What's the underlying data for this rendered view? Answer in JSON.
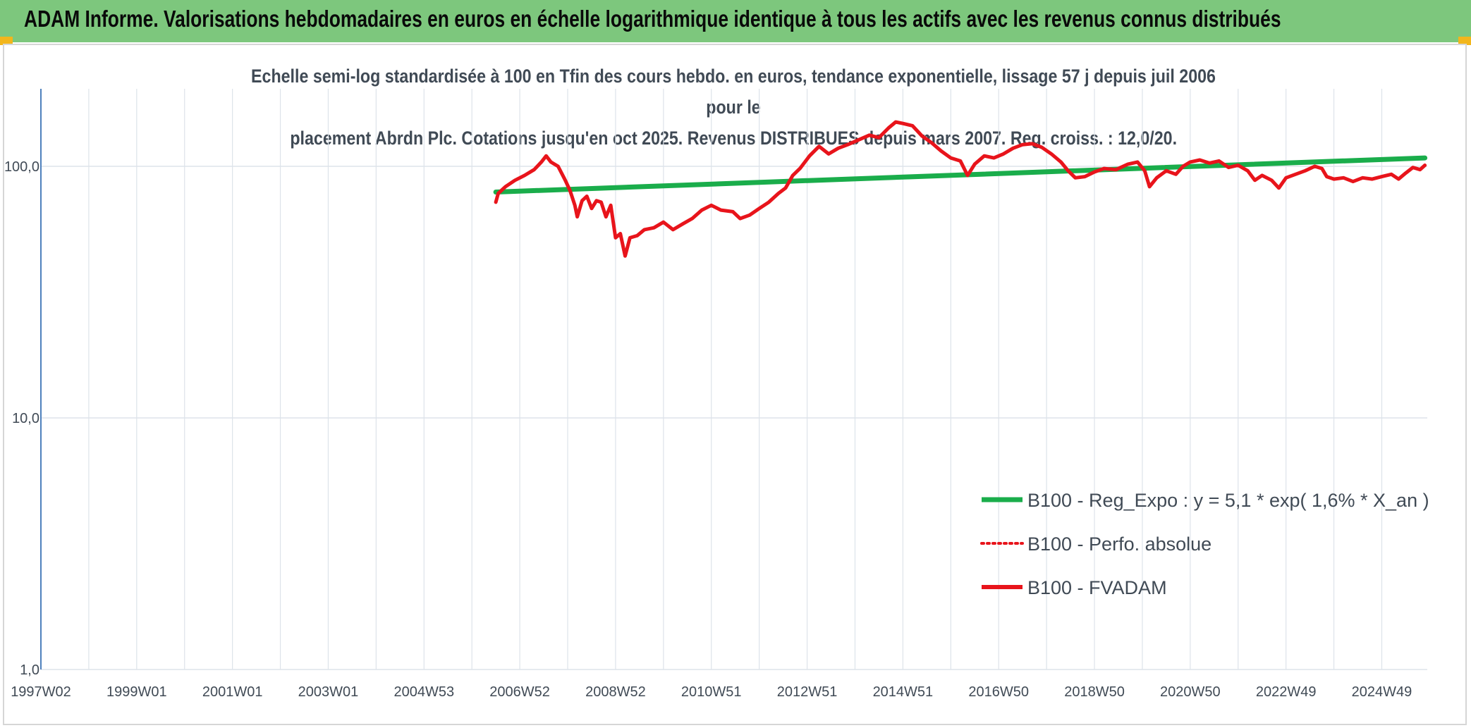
{
  "banner": {
    "title": "ADAM Informe. Valorisations hebdomadaires en euros en échelle logarithmique identique à tous les actifs avec les revenus connus distribués"
  },
  "colors": {
    "banner_bg": "#7dc77d",
    "accent_corner": "#f2b61c",
    "regression": "#1aad4b",
    "fvadam": "#e8141b",
    "perfo": "#e8141b",
    "grid": "#dde3ea",
    "y_axis_line": "#4f81bd",
    "text": "#404a55"
  },
  "chart_data": {
    "type": "line",
    "title_line1": "Echelle semi-log standardisée à 100 en Tfin des cours hebdo. en euros, tendance exponentielle, lissage 57 j depuis juil 2006 pour le",
    "title_line2": "placement Abrdn Plc. Cotations jusqu'en oct 2025. Revenus DISTRIBUES depuis mars 2007. Reg. croiss. : 12,0/20.",
    "y_scale": "log",
    "ylim": [
      1,
      180
    ],
    "y_ticks": [
      {
        "value": 100,
        "label": "100,0"
      },
      {
        "value": 10,
        "label": "10,0"
      },
      {
        "value": 1,
        "label": "1,0"
      }
    ],
    "x_unit": "years",
    "xlim": [
      1997.0,
      2025.95
    ],
    "x_ticks": [
      {
        "x": 1997.0,
        "label": "1997W02"
      },
      {
        "x": 1999.0,
        "label": "1999W01"
      },
      {
        "x": 2001.0,
        "label": "2001W01"
      },
      {
        "x": 2003.0,
        "label": "2003W01"
      },
      {
        "x": 2005.0,
        "label": "2004W53"
      },
      {
        "x": 2007.0,
        "label": "2006W52"
      },
      {
        "x": 2009.0,
        "label": "2008W52"
      },
      {
        "x": 2011.0,
        "label": "2010W51"
      },
      {
        "x": 2013.0,
        "label": "2012W51"
      },
      {
        "x": 2015.0,
        "label": "2014W51"
      },
      {
        "x": 2017.0,
        "label": "2016W50"
      },
      {
        "x": 2019.0,
        "label": "2018W50"
      },
      {
        "x": 2021.0,
        "label": "2020W50"
      },
      {
        "x": 2023.0,
        "label": "2022W49"
      },
      {
        "x": 2025.0,
        "label": "2024W49"
      }
    ],
    "grid": true,
    "legend_position": "bottom-right",
    "series": [
      {
        "name": "B100 - Reg_Expo : y = 5,1 * exp( 1,6% *  X_an )",
        "style": "solid-thick",
        "color": "#1aad4b",
        "points": [
          [
            2006.5,
            79
          ],
          [
            2025.9,
            108
          ]
        ]
      },
      {
        "name": "B100 - Perfo. absolue",
        "style": "dotted",
        "color": "#e8141b",
        "points": []
      },
      {
        "name": "B100 - FVADAM",
        "style": "solid",
        "color": "#e8141b",
        "points": [
          [
            2006.5,
            72
          ],
          [
            2006.55,
            78
          ],
          [
            2006.7,
            83
          ],
          [
            2006.9,
            88
          ],
          [
            2007.1,
            92
          ],
          [
            2007.3,
            97
          ],
          [
            2007.45,
            104
          ],
          [
            2007.55,
            110
          ],
          [
            2007.65,
            104
          ],
          [
            2007.8,
            100
          ],
          [
            2007.95,
            88
          ],
          [
            2008.05,
            80
          ],
          [
            2008.15,
            70
          ],
          [
            2008.2,
            63
          ],
          [
            2008.3,
            73
          ],
          [
            2008.4,
            76
          ],
          [
            2008.5,
            68
          ],
          [
            2008.6,
            73
          ],
          [
            2008.7,
            72
          ],
          [
            2008.8,
            63
          ],
          [
            2008.9,
            70
          ],
          [
            2009.0,
            52
          ],
          [
            2009.1,
            54
          ],
          [
            2009.2,
            44
          ],
          [
            2009.3,
            52
          ],
          [
            2009.45,
            53
          ],
          [
            2009.6,
            56
          ],
          [
            2009.8,
            57
          ],
          [
            2010.0,
            60
          ],
          [
            2010.2,
            56
          ],
          [
            2010.4,
            59
          ],
          [
            2010.6,
            62
          ],
          [
            2010.8,
            67
          ],
          [
            2011.0,
            70
          ],
          [
            2011.2,
            67
          ],
          [
            2011.45,
            66
          ],
          [
            2011.6,
            62
          ],
          [
            2011.8,
            64
          ],
          [
            2012.0,
            68
          ],
          [
            2012.2,
            72
          ],
          [
            2012.4,
            78
          ],
          [
            2012.55,
            82
          ],
          [
            2012.7,
            92
          ],
          [
            2012.85,
            98
          ],
          [
            2013.05,
            110
          ],
          [
            2013.25,
            120
          ],
          [
            2013.45,
            112
          ],
          [
            2013.65,
            118
          ],
          [
            2013.85,
            122
          ],
          [
            2014.1,
            128
          ],
          [
            2014.3,
            133
          ],
          [
            2014.5,
            130
          ],
          [
            2014.7,
            142
          ],
          [
            2014.85,
            150
          ],
          [
            2015.0,
            148
          ],
          [
            2015.2,
            145
          ],
          [
            2015.4,
            132
          ],
          [
            2015.6,
            124
          ],
          [
            2015.8,
            115
          ],
          [
            2016.0,
            108
          ],
          [
            2016.2,
            105
          ],
          [
            2016.35,
            92
          ],
          [
            2016.5,
            102
          ],
          [
            2016.7,
            110
          ],
          [
            2016.9,
            108
          ],
          [
            2017.1,
            112
          ],
          [
            2017.3,
            118
          ],
          [
            2017.5,
            122
          ],
          [
            2017.7,
            123
          ],
          [
            2017.9,
            119
          ],
          [
            2018.1,
            112
          ],
          [
            2018.3,
            104
          ],
          [
            2018.45,
            96
          ],
          [
            2018.6,
            90
          ],
          [
            2018.8,
            91
          ],
          [
            2019.0,
            95
          ],
          [
            2019.2,
            98
          ],
          [
            2019.45,
            97
          ],
          [
            2019.7,
            102
          ],
          [
            2019.9,
            104
          ],
          [
            2020.05,
            96
          ],
          [
            2020.15,
            83
          ],
          [
            2020.3,
            90
          ],
          [
            2020.5,
            96
          ],
          [
            2020.7,
            93
          ],
          [
            2020.85,
            100
          ],
          [
            2021.0,
            104
          ],
          [
            2021.2,
            106
          ],
          [
            2021.4,
            103
          ],
          [
            2021.6,
            105
          ],
          [
            2021.8,
            99
          ],
          [
            2022.0,
            101
          ],
          [
            2022.2,
            96
          ],
          [
            2022.35,
            88
          ],
          [
            2022.5,
            92
          ],
          [
            2022.7,
            88
          ],
          [
            2022.85,
            82
          ],
          [
            2023.0,
            90
          ],
          [
            2023.2,
            93
          ],
          [
            2023.4,
            96
          ],
          [
            2023.6,
            100
          ],
          [
            2023.75,
            98
          ],
          [
            2023.85,
            91
          ],
          [
            2024.0,
            89
          ],
          [
            2024.2,
            90
          ],
          [
            2024.4,
            87
          ],
          [
            2024.6,
            90
          ],
          [
            2024.8,
            89
          ],
          [
            2025.0,
            91
          ],
          [
            2025.2,
            93
          ],
          [
            2025.35,
            89
          ],
          [
            2025.5,
            94
          ],
          [
            2025.65,
            99
          ],
          [
            2025.8,
            97
          ],
          [
            2025.9,
            101
          ]
        ]
      }
    ]
  }
}
